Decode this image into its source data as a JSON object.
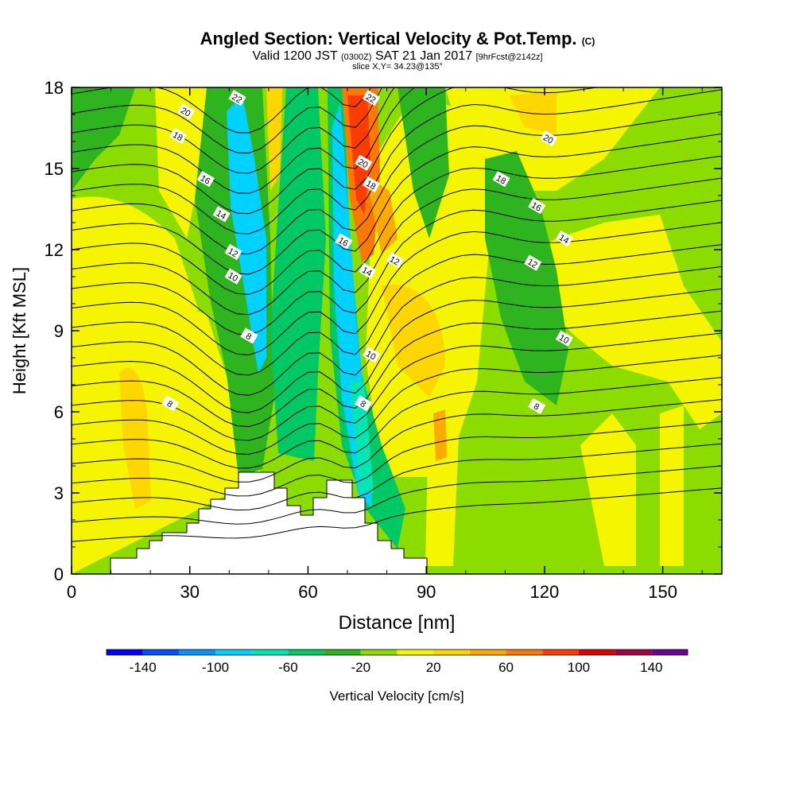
{
  "header": {
    "title": "Angled Section: Vertical Velocity & Pot.Temp.",
    "title_mark": "(C)",
    "valid_prefix": "Valid 1200 JST",
    "valid_utc": "(0300Z)",
    "valid_date": "SAT 21 Jan 2017",
    "forecast": "[9hrFcst@2142z]",
    "slice": "slice X,Y= 34.23@135°"
  },
  "chart_data": {
    "type": "heatmap",
    "xlabel": "Distance [nm]",
    "ylabel": "Height [Kft MSL]",
    "xlim": [
      0,
      165
    ],
    "ylim": [
      0,
      18
    ],
    "x_ticks": [
      0,
      30,
      60,
      90,
      120,
      150
    ],
    "y_ticks": [
      0,
      3,
      6,
      9,
      12,
      15,
      18
    ],
    "colorbar": {
      "label": "Vertical Velocity [cm/s]",
      "tick_labels": [
        -140,
        -100,
        -60,
        -20,
        20,
        60,
        100,
        140
      ],
      "bins": [
        {
          "from": -160,
          "to": -140,
          "color": "#0000ff"
        },
        {
          "from": -140,
          "to": -120,
          "color": "#0050ff"
        },
        {
          "from": -120,
          "to": -100,
          "color": "#0096ff"
        },
        {
          "from": -100,
          "to": -80,
          "color": "#00d2ff"
        },
        {
          "from": -80,
          "to": -60,
          "color": "#00e6b4"
        },
        {
          "from": -60,
          "to": -40,
          "color": "#00c864"
        },
        {
          "from": -40,
          "to": -20,
          "color": "#2db41e"
        },
        {
          "from": -20,
          "to": 0,
          "color": "#8cdc00"
        },
        {
          "from": 0,
          "to": 20,
          "color": "#f5f500"
        },
        {
          "from": 20,
          "to": 40,
          "color": "#ffd700"
        },
        {
          "from": 40,
          "to": 60,
          "color": "#ffaa00"
        },
        {
          "from": 60,
          "to": 80,
          "color": "#ff7800"
        },
        {
          "from": 80,
          "to": 100,
          "color": "#ff3c00"
        },
        {
          "from": 100,
          "to": 120,
          "color": "#dc0000"
        },
        {
          "from": 120,
          "to": 140,
          "color": "#a00046"
        },
        {
          "from": 140,
          "to": 160,
          "color": "#6e0096"
        }
      ]
    },
    "theta_contour_labels": [
      {
        "text": "22",
        "x": 42,
        "y": 17.6
      },
      {
        "text": "20",
        "x": 29,
        "y": 17.1
      },
      {
        "text": "18",
        "x": 27,
        "y": 16.2
      },
      {
        "text": "16",
        "x": 34,
        "y": 14.6
      },
      {
        "text": "14",
        "x": 38,
        "y": 13.3
      },
      {
        "text": "12",
        "x": 41,
        "y": 11.9
      },
      {
        "text": "10",
        "x": 41,
        "y": 11.0
      },
      {
        "text": "8",
        "x": 45,
        "y": 8.8
      },
      {
        "text": "8",
        "x": 25,
        "y": 6.3
      },
      {
        "text": "22",
        "x": 76,
        "y": 17.6
      },
      {
        "text": "20",
        "x": 74,
        "y": 15.2
      },
      {
        "text": "18",
        "x": 76,
        "y": 14.4
      },
      {
        "text": "16",
        "x": 69,
        "y": 12.3
      },
      {
        "text": "14",
        "x": 75,
        "y": 11.2
      },
      {
        "text": "12",
        "x": 82,
        "y": 11.6
      },
      {
        "text": "10",
        "x": 76,
        "y": 8.1
      },
      {
        "text": "8",
        "x": 74,
        "y": 6.3
      },
      {
        "text": "20",
        "x": 121,
        "y": 16.1
      },
      {
        "text": "18",
        "x": 109,
        "y": 14.6
      },
      {
        "text": "16",
        "x": 118,
        "y": 13.6
      },
      {
        "text": "14",
        "x": 125,
        "y": 12.4
      },
      {
        "text": "12",
        "x": 117,
        "y": 11.5
      },
      {
        "text": "10",
        "x": 125,
        "y": 8.7
      },
      {
        "text": "8",
        "x": 118,
        "y": 6.2
      }
    ]
  }
}
